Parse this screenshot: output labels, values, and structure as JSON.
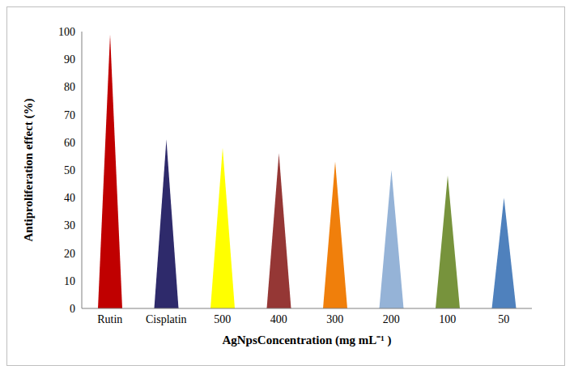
{
  "chart_data": {
    "type": "bar",
    "categories": [
      "Rutin",
      "Cisplatin",
      "500",
      "400",
      "300",
      "200",
      "100",
      "50"
    ],
    "values": [
      99,
      61,
      58,
      56,
      53,
      50,
      48,
      40
    ],
    "colors": [
      "#c00000",
      "#2e2a6b",
      "#ffff00",
      "#953735",
      "#f07f0b",
      "#95b3d7",
      "#77933c",
      "#4f81bd"
    ],
    "ylim": [
      0,
      100
    ],
    "yticks": [
      0,
      10,
      20,
      30,
      40,
      50,
      60,
      70,
      80,
      90,
      100
    ],
    "x_label": "AgNpsConcentration (mg mL⁻¹ )",
    "y_label": "Antiproliferation  effect (%)",
    "grid": false
  }
}
